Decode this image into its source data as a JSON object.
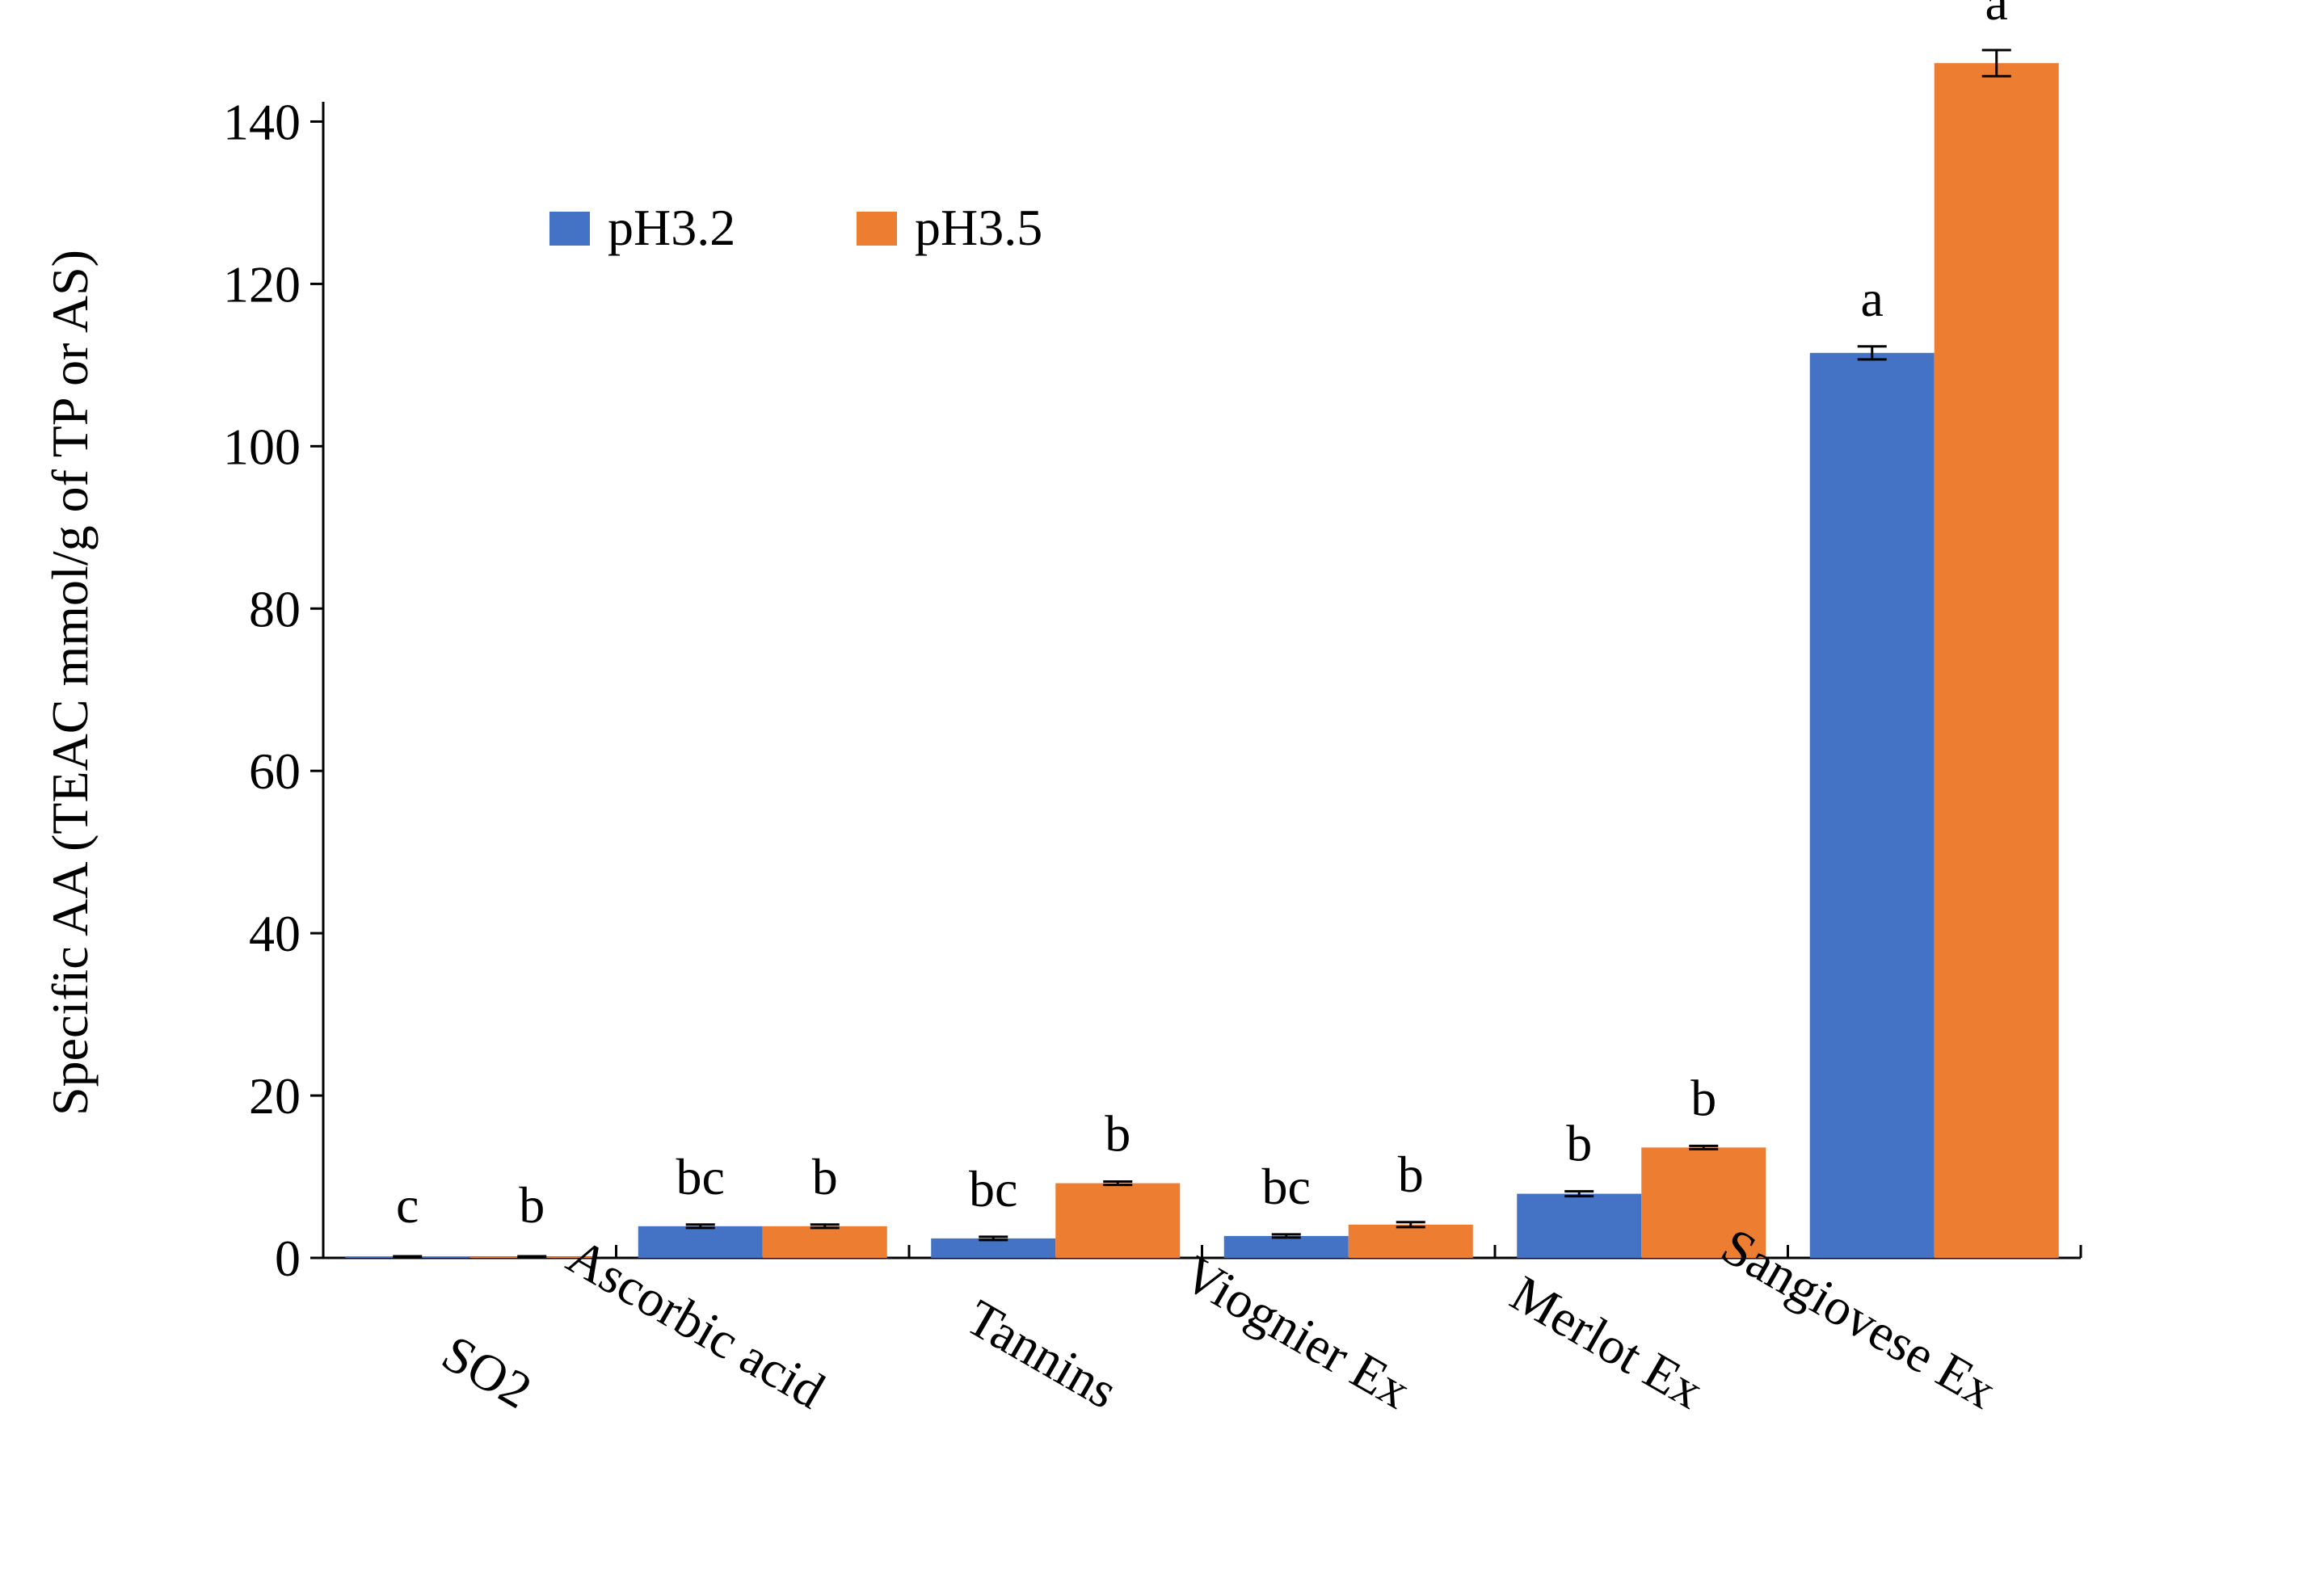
{
  "chart_data": {
    "type": "bar",
    "title": "",
    "xlabel": "",
    "ylabel": "Specific AA (TEAC mmol/g of TP or AS)",
    "ylim": [
      0,
      150
    ],
    "yticks": [
      0,
      20,
      40,
      60,
      80,
      100,
      120,
      140
    ],
    "grid": false,
    "legend_position": "top-left",
    "categories": [
      "SO2",
      "Ascorbic acid",
      "Tannins",
      "Viognier Ex",
      "Merlot Ex",
      "Sangiovese Ex"
    ],
    "series": [
      {
        "name": "pH3.2",
        "color": "#4472c4",
        "values": [
          0.1,
          3.9,
          2.4,
          2.7,
          7.9,
          111.5
        ],
        "errors": [
          0.1,
          0.2,
          0.2,
          0.2,
          0.3,
          0.8
        ],
        "labels": [
          "c",
          "bc",
          "bc",
          "bc",
          "b",
          "a"
        ]
      },
      {
        "name": "pH3.5",
        "color": "#ed7d31",
        "values": [
          0.1,
          3.9,
          9.2,
          4.1,
          13.6,
          147.2
        ],
        "errors": [
          0.1,
          0.2,
          0.2,
          0.3,
          0.2,
          1.6
        ],
        "labels": [
          "b",
          "b",
          "b",
          "b",
          "b",
          "a"
        ]
      }
    ]
  }
}
